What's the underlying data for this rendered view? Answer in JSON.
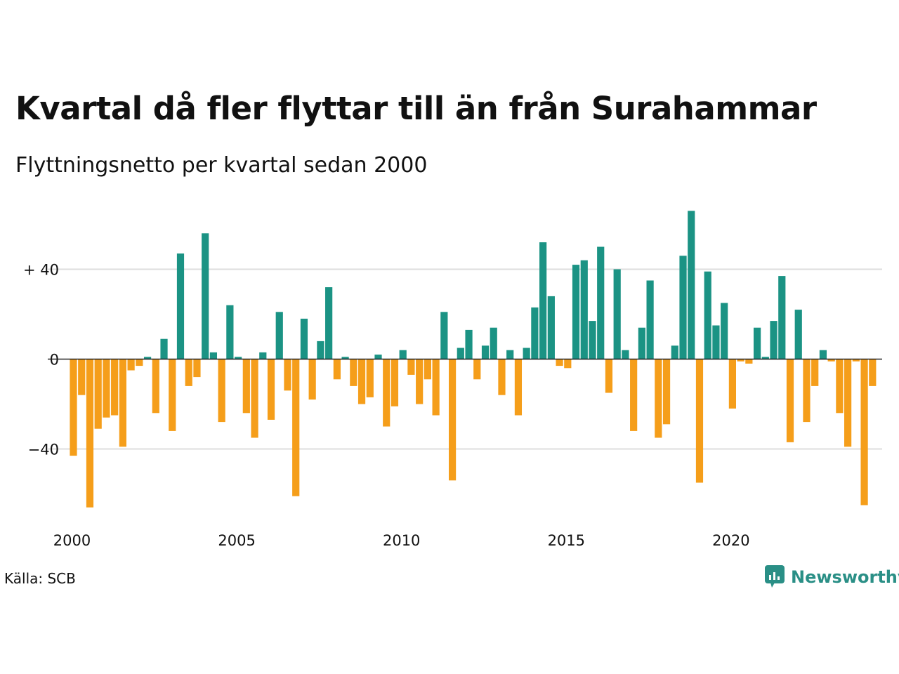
{
  "chart_data": {
    "type": "bar",
    "title": "Kvartal då fler flyttar till än från Surahammar",
    "subtitle": "Flyttningsnetto per kvartal sedan 2000",
    "source": "Källa: SCB",
    "brand": "Newsworthy",
    "xlabel": "",
    "ylabel": "",
    "ylim": [
      -70,
      70
    ],
    "y_ticks": [
      {
        "value": 40,
        "label": "+ 40"
      },
      {
        "value": 0,
        "label": "0"
      },
      {
        "value": -40,
        "label": "−40"
      }
    ],
    "x_ticks": [
      {
        "index": 0,
        "label": "2000"
      },
      {
        "index": 20,
        "label": "2005"
      },
      {
        "index": 40,
        "label": "2010"
      },
      {
        "index": 60,
        "label": "2015"
      },
      {
        "index": 80,
        "label": "2020"
      }
    ],
    "grid": true,
    "colors": {
      "positive": "#1b9384",
      "negative": "#f59e1a",
      "grid": "#dddddd",
      "baseline": "#222222"
    },
    "values": [
      -43,
      -16,
      -66,
      -31,
      -26,
      -25,
      -39,
      -5,
      -3,
      1,
      -24,
      9,
      -32,
      47,
      -12,
      -8,
      56,
      3,
      -28,
      24,
      1,
      -24,
      -35,
      3,
      -27,
      21,
      -14,
      -61,
      18,
      -18,
      8,
      32,
      -9,
      1,
      -12,
      -20,
      -17,
      2,
      -30,
      -21,
      4,
      -7,
      -20,
      -9,
      -25,
      21,
      -54,
      5,
      13,
      -9,
      6,
      14,
      -16,
      4,
      -25,
      5,
      23,
      52,
      28,
      -3,
      -4,
      42,
      44,
      17,
      50,
      -15,
      40,
      4,
      -32,
      14,
      35,
      -35,
      -29,
      6,
      46,
      66,
      -55,
      39,
      15,
      25,
      -22,
      -1,
      -2,
      14,
      1,
      17,
      37,
      -37,
      22,
      -28,
      -12,
      4,
      -1,
      -24,
      -39,
      -1,
      -65,
      -12
    ]
  }
}
